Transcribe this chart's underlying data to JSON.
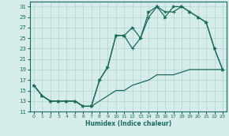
{
  "xlabel": "Humidex (Indice chaleur)",
  "bg_color": "#d6ecea",
  "grid_color": "#b0d4d0",
  "line_color": "#1a6b5a",
  "xlim": [
    -0.5,
    23.5
  ],
  "ylim": [
    11,
    32
  ],
  "xticks": [
    0,
    1,
    2,
    3,
    4,
    5,
    6,
    7,
    8,
    9,
    10,
    11,
    12,
    13,
    14,
    15,
    16,
    17,
    18,
    19,
    20,
    21,
    22,
    23
  ],
  "yticks": [
    11,
    13,
    15,
    17,
    19,
    21,
    23,
    25,
    27,
    29,
    31
  ],
  "line1_x": [
    0,
    1,
    2,
    3,
    4,
    5,
    6,
    7,
    8,
    9,
    10,
    11,
    12,
    13,
    14,
    15,
    16,
    17,
    18,
    19,
    20,
    21,
    22,
    23
  ],
  "line1_y": [
    16,
    14,
    13,
    13,
    13,
    13,
    12,
    12,
    13,
    14,
    15,
    15,
    16,
    16.5,
    17,
    18,
    18,
    18,
    18.5,
    19,
    19,
    19,
    19,
    19
  ],
  "line2_x": [
    0,
    1,
    2,
    3,
    4,
    5,
    6,
    7,
    8,
    9,
    10,
    11,
    12,
    13,
    14,
    15,
    16,
    17,
    18,
    19,
    20,
    21,
    22,
    23
  ],
  "line2_y": [
    16,
    14,
    13,
    13,
    13,
    13,
    12,
    12,
    17,
    19.5,
    25.5,
    25.5,
    23,
    25,
    29,
    31,
    30,
    30,
    31,
    30,
    29,
    28,
    23,
    19
  ],
  "line3_x": [
    0,
    1,
    2,
    3,
    4,
    5,
    6,
    7,
    8,
    9,
    10,
    11,
    12,
    13,
    14,
    15,
    16,
    17,
    18,
    19,
    20,
    21,
    22,
    23
  ],
  "line3_y": [
    16,
    14,
    13,
    13,
    13,
    13,
    12,
    12,
    17,
    19.5,
    25.5,
    25.5,
    27,
    25,
    30,
    31,
    29,
    31,
    31,
    30,
    29,
    28,
    23,
    19
  ]
}
